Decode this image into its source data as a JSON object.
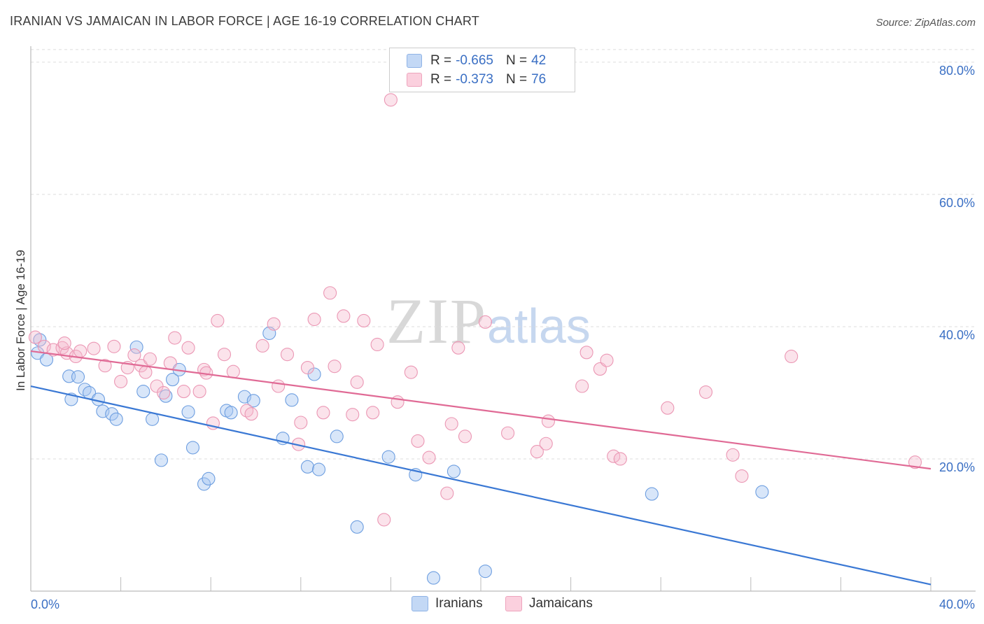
{
  "header": {
    "title": "IRANIAN VS JAMAICAN IN LABOR FORCE | AGE 16-19 CORRELATION CHART",
    "source": "Source: ZipAtlas.com"
  },
  "watermark": {
    "zip": "ZIP",
    "atlas": "atlas"
  },
  "legend": {
    "rows": [
      {
        "r_label": "R =",
        "r_value": "-0.665",
        "n_label": "N =",
        "n_value": "42",
        "color": "#a9c8f2"
      },
      {
        "r_label": "R =",
        "r_value": "-0.373",
        "n_label": "N =",
        "n_value": "76",
        "color": "#f6b8cc"
      }
    ]
  },
  "bottom_legend": {
    "items": [
      "Iranians",
      "Jamaicans"
    ]
  },
  "chart_data": {
    "type": "scatter",
    "title": "IRANIAN VS JAMAICAN IN LABOR FORCE | AGE 16-19 CORRELATION CHART",
    "xlabel": "",
    "ylabel": "In Labor Force | Age 16-19",
    "xlim": [
      0,
      40
    ],
    "ylim": [
      0,
      82
    ],
    "x_tick_labels": [
      "0.0%",
      "40.0%"
    ],
    "y_ticks": [
      20,
      40,
      60,
      80
    ],
    "y_tick_labels": [
      "20.0%",
      "40.0%",
      "60.0%",
      "80.0%"
    ],
    "grid": true,
    "legend_position": "top-center",
    "colors": {
      "iranians": "#3a78d4",
      "jamaicans": "#e06a95"
    },
    "series": [
      {
        "name": "Iranians",
        "color": "#3a78d4",
        "points": [
          [
            0.3,
            36.0
          ],
          [
            0.7,
            35.0
          ],
          [
            1.7,
            32.5
          ],
          [
            1.8,
            29.0
          ],
          [
            2.4,
            30.5
          ],
          [
            2.1,
            32.4
          ],
          [
            2.6,
            30.0
          ],
          [
            3.0,
            29.0
          ],
          [
            3.2,
            27.2
          ],
          [
            3.6,
            26.8
          ],
          [
            3.8,
            26.0
          ],
          [
            4.7,
            36.9
          ],
          [
            5.0,
            30.2
          ],
          [
            5.4,
            26.0
          ],
          [
            5.8,
            19.8
          ],
          [
            6.0,
            29.5
          ],
          [
            6.3,
            32.0
          ],
          [
            6.6,
            33.5
          ],
          [
            7.0,
            27.1
          ],
          [
            7.2,
            21.7
          ],
          [
            7.7,
            16.2
          ],
          [
            7.9,
            17.0
          ],
          [
            8.7,
            27.3
          ],
          [
            8.9,
            27.0
          ],
          [
            9.5,
            29.4
          ],
          [
            9.9,
            28.8
          ],
          [
            10.6,
            39.0
          ],
          [
            11.2,
            23.1
          ],
          [
            11.6,
            28.9
          ],
          [
            12.3,
            18.8
          ],
          [
            12.6,
            32.8
          ],
          [
            12.8,
            18.4
          ],
          [
            13.6,
            23.4
          ],
          [
            14.5,
            9.7
          ],
          [
            15.9,
            20.3
          ],
          [
            17.1,
            17.6
          ],
          [
            17.9,
            2.0
          ],
          [
            18.8,
            18.1
          ],
          [
            20.2,
            3.0
          ],
          [
            27.6,
            14.7
          ],
          [
            32.5,
            15.0
          ],
          [
            0.4,
            38.0
          ]
        ]
      },
      {
        "name": "Jamaicans",
        "color": "#e06a95",
        "points": [
          [
            0.2,
            38.4
          ],
          [
            0.6,
            37.0
          ],
          [
            1.0,
            36.5
          ],
          [
            1.4,
            36.8
          ],
          [
            1.6,
            36.0
          ],
          [
            2.0,
            35.5
          ],
          [
            2.2,
            36.3
          ],
          [
            2.8,
            36.7
          ],
          [
            3.3,
            34.1
          ],
          [
            3.7,
            37.0
          ],
          [
            4.0,
            31.7
          ],
          [
            4.6,
            35.7
          ],
          [
            4.9,
            34.1
          ],
          [
            5.1,
            33.1
          ],
          [
            5.3,
            35.1
          ],
          [
            5.6,
            31.0
          ],
          [
            5.9,
            30.0
          ],
          [
            6.4,
            38.3
          ],
          [
            6.8,
            30.2
          ],
          [
            7.0,
            36.8
          ],
          [
            7.5,
            30.2
          ],
          [
            7.7,
            33.5
          ],
          [
            7.8,
            33.0
          ],
          [
            8.1,
            25.4
          ],
          [
            8.3,
            40.9
          ],
          [
            8.6,
            35.8
          ],
          [
            9.0,
            33.2
          ],
          [
            9.6,
            27.3
          ],
          [
            9.8,
            26.8
          ],
          [
            10.3,
            37.1
          ],
          [
            10.8,
            40.4
          ],
          [
            11.0,
            31.0
          ],
          [
            11.4,
            35.8
          ],
          [
            11.9,
            22.2
          ],
          [
            12.0,
            25.5
          ],
          [
            12.3,
            33.8
          ],
          [
            12.6,
            41.1
          ],
          [
            13.0,
            27.0
          ],
          [
            13.3,
            45.1
          ],
          [
            13.5,
            34.0
          ],
          [
            13.9,
            41.6
          ],
          [
            14.3,
            26.7
          ],
          [
            14.5,
            31.6
          ],
          [
            14.8,
            40.9
          ],
          [
            15.2,
            27.0
          ],
          [
            15.4,
            37.3
          ],
          [
            15.7,
            10.8
          ],
          [
            16.0,
            74.3
          ],
          [
            16.3,
            28.6
          ],
          [
            16.9,
            33.1
          ],
          [
            17.2,
            22.7
          ],
          [
            17.7,
            20.2
          ],
          [
            18.5,
            14.8
          ],
          [
            18.7,
            25.3
          ],
          [
            19.0,
            36.8
          ],
          [
            19.3,
            23.4
          ],
          [
            20.2,
            40.7
          ],
          [
            21.2,
            23.9
          ],
          [
            22.5,
            21.1
          ],
          [
            22.9,
            22.3
          ],
          [
            23.0,
            25.7
          ],
          [
            24.5,
            31.0
          ],
          [
            24.7,
            36.1
          ],
          [
            25.3,
            33.6
          ],
          [
            25.6,
            34.9
          ],
          [
            25.9,
            20.4
          ],
          [
            26.2,
            20.0
          ],
          [
            28.3,
            27.7
          ],
          [
            30.0,
            30.1
          ],
          [
            31.2,
            20.6
          ],
          [
            31.6,
            17.4
          ],
          [
            33.8,
            35.5
          ],
          [
            39.3,
            19.5
          ],
          [
            1.5,
            37.5
          ],
          [
            6.2,
            34.5
          ],
          [
            4.3,
            33.8
          ]
        ]
      }
    ],
    "trendlines": [
      {
        "name": "Iranians",
        "x": [
          0,
          40
        ],
        "y": [
          31.0,
          1.0
        ]
      },
      {
        "name": "Jamaicans",
        "x": [
          0,
          40
        ],
        "y": [
          36.3,
          18.5
        ]
      }
    ]
  }
}
